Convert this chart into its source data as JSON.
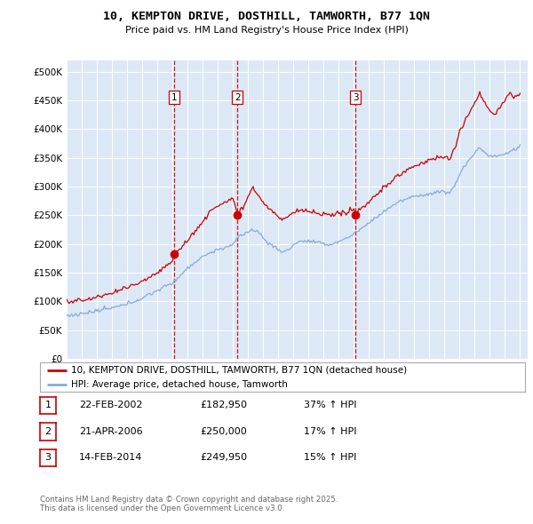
{
  "title": "10, KEMPTON DRIVE, DOSTHILL, TAMWORTH, B77 1QN",
  "subtitle": "Price paid vs. HM Land Registry's House Price Index (HPI)",
  "legend_line1": "10, KEMPTON DRIVE, DOSTHILL, TAMWORTH, B77 1QN (detached house)",
  "legend_line2": "HPI: Average price, detached house, Tamworth",
  "footer": "Contains HM Land Registry data © Crown copyright and database right 2025.\nThis data is licensed under the Open Government Licence v3.0.",
  "transactions": [
    {
      "num": 1,
      "date": "22-FEB-2002",
      "price": 182950,
      "pct": "37%",
      "dir": "↑"
    },
    {
      "num": 2,
      "date": "21-APR-2006",
      "price": 250000,
      "pct": "17%",
      "dir": "↑"
    },
    {
      "num": 3,
      "date": "14-FEB-2014",
      "price": 249950,
      "pct": "15%",
      "dir": "↑"
    }
  ],
  "vline_years": [
    2002.13,
    2006.3,
    2014.12
  ],
  "vline_labels": [
    "1",
    "2",
    "3"
  ],
  "sale_points_red": [
    [
      2002.13,
      182950
    ],
    [
      2006.3,
      250000
    ],
    [
      2014.12,
      249950
    ]
  ],
  "bg_color": "#dce8f5",
  "line_color_red": "#cc0000",
  "line_color_blue": "#88aadd",
  "ylim": [
    0,
    520000
  ],
  "yticks": [
    0,
    50000,
    100000,
    150000,
    200000,
    250000,
    300000,
    350000,
    400000,
    450000,
    500000
  ],
  "xlim": [
    1995,
    2025.5
  ]
}
